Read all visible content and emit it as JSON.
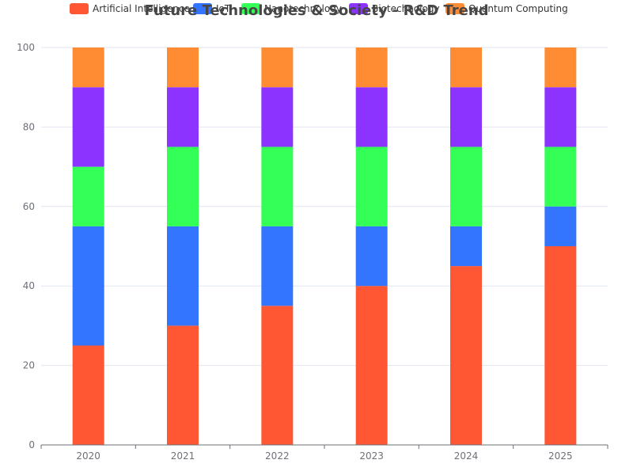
{
  "chart_data": {
    "type": "bar",
    "stacked": true,
    "title": "Future Technologies & Society - R&D Trend",
    "categories": [
      "2020",
      "2021",
      "2022",
      "2023",
      "2024",
      "2025"
    ],
    "series": [
      {
        "name": "Artificial Intelligence",
        "color": "#ff5733",
        "values": [
          25,
          30,
          35,
          40,
          45,
          50
        ]
      },
      {
        "name": "IoT",
        "color": "#3375ff",
        "values": [
          30,
          25,
          20,
          15,
          10,
          10
        ]
      },
      {
        "name": "Nanotechnology",
        "color": "#33ff57",
        "values": [
          15,
          20,
          20,
          20,
          20,
          15
        ]
      },
      {
        "name": "Biotechnology",
        "color": "#8c33ff",
        "values": [
          20,
          15,
          15,
          15,
          15,
          15
        ]
      },
      {
        "name": "Quantum Computing",
        "color": "#ff8c33",
        "values": [
          10,
          10,
          10,
          10,
          10,
          10
        ]
      }
    ],
    "ylim": [
      0,
      100
    ],
    "yticks": [
      0,
      20,
      40,
      60,
      80,
      100
    ],
    "grid": true,
    "legend_position": "top-center"
  }
}
